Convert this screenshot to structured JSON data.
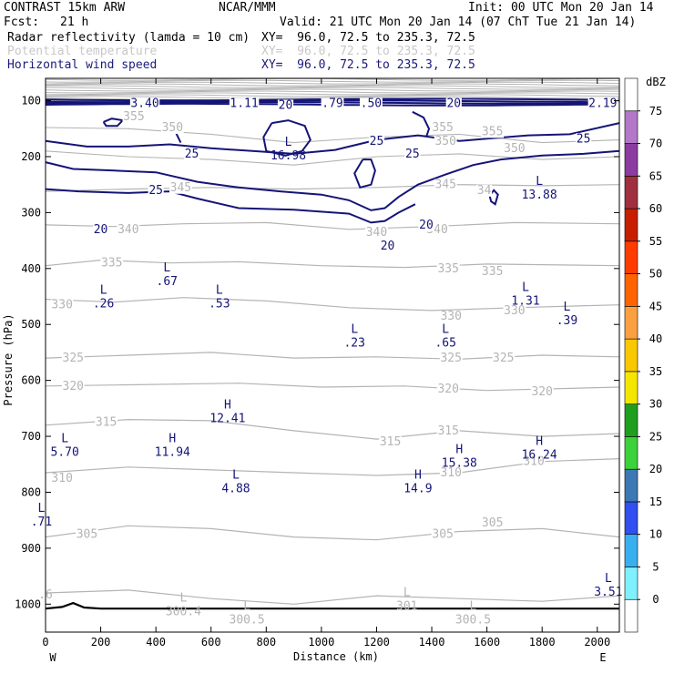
{
  "header": {
    "model": "CONTRAST 15km ARW",
    "center": "NCAR/MMM",
    "init": "Init: 00 UTC Mon 20 Jan 14",
    "fcst_label": "Fcst:",
    "fcst_value": "21 h",
    "valid": "Valid: 21 UTC Mon 20 Jan 14 (07 ChT Tue 21 Jan 14)",
    "fields": [
      {
        "name": "Radar reflectivity (lamda = 10 cm)",
        "xy": "XY=  96.0, 72.5 to 235.3, 72.5",
        "color": "#000000"
      },
      {
        "name": "Potential temperature",
        "xy": "XY=  96.0, 72.5 to 235.3, 72.5",
        "color": "#c8c8c8"
      },
      {
        "name": "Horizontal wind speed",
        "xy": "XY=  96.0, 72.5 to 235.3, 72.5",
        "color": "#1a1a7a"
      }
    ]
  },
  "chart_data": {
    "type": "contour",
    "xlabel": "Distance (km)",
    "ylabel": "Pressure (hPa)",
    "x_ticks": [
      0,
      200,
      400,
      600,
      800,
      1000,
      1200,
      1400,
      1600,
      1800,
      2000
    ],
    "y_ticks": [
      100,
      200,
      300,
      400,
      500,
      600,
      700,
      800,
      900,
      1000
    ],
    "xlim": [
      0,
      2080
    ],
    "ylim": [
      1050,
      60
    ],
    "left_endpoint": "W",
    "right_endpoint": "E",
    "theta_labels": [
      {
        "text": "355",
        "x": 320,
        "p": 128
      },
      {
        "text": "350",
        "x": 460,
        "p": 148
      },
      {
        "text": "355",
        "x": 1440,
        "p": 148
      },
      {
        "text": "355",
        "x": 1620,
        "p": 155
      },
      {
        "text": "350",
        "x": 1450,
        "p": 172
      },
      {
        "text": "350",
        "x": 1700,
        "p": 185
      },
      {
        "text": "345",
        "x": 490,
        "p": 255
      },
      {
        "text": "345",
        "x": 1450,
        "p": 250
      },
      {
        "text": "34",
        "x": 1590,
        "p": 260
      },
      {
        "text": "340",
        "x": 300,
        "p": 330
      },
      {
        "text": "340",
        "x": 1200,
        "p": 335
      },
      {
        "text": "340",
        "x": 1420,
        "p": 330
      },
      {
        "text": "335",
        "x": 240,
        "p": 390
      },
      {
        "text": "335",
        "x": 1460,
        "p": 400
      },
      {
        "text": "335",
        "x": 1620,
        "p": 405
      },
      {
        "text": "330",
        "x": 60,
        "p": 465
      },
      {
        "text": "330",
        "x": 1470,
        "p": 485
      },
      {
        "text": "330",
        "x": 1700,
        "p": 475
      },
      {
        "text": "325",
        "x": 100,
        "p": 560
      },
      {
        "text": "325",
        "x": 1470,
        "p": 560
      },
      {
        "text": "325",
        "x": 1660,
        "p": 560
      },
      {
        "text": "320",
        "x": 100,
        "p": 610
      },
      {
        "text": "320",
        "x": 1460,
        "p": 615
      },
      {
        "text": "320",
        "x": 1800,
        "p": 620
      },
      {
        "text": "315",
        "x": 220,
        "p": 675
      },
      {
        "text": "315",
        "x": 1250,
        "p": 710
      },
      {
        "text": "315",
        "x": 1460,
        "p": 690
      },
      {
        "text": "310",
        "x": 60,
        "p": 775
      },
      {
        "text": "310",
        "x": 1470,
        "p": 765
      },
      {
        "text": "310",
        "x": 1770,
        "p": 745
      },
      {
        "text": "305",
        "x": 150,
        "p": 875
      },
      {
        "text": "305",
        "x": 1440,
        "p": 875
      },
      {
        "text": "305",
        "x": 1620,
        "p": 855
      }
    ],
    "wind_labels": [
      {
        "text": "3.40",
        "x": 360,
        "p": 105
      },
      {
        "text": "1.11",
        "x": 720,
        "p": 105
      },
      {
        "text": "20",
        "x": 870,
        "p": 108
      },
      {
        "text": ".79",
        "x": 1040,
        "p": 105
      },
      {
        "text": ".50",
        "x": 1180,
        "p": 105
      },
      {
        "text": "20",
        "x": 1480,
        "p": 105
      },
      {
        "text": "2.19",
        "x": 2020,
        "p": 105
      },
      {
        "text": "25",
        "x": 1200,
        "p": 172
      },
      {
        "text": "25",
        "x": 530,
        "p": 195
      },
      {
        "text": "25",
        "x": 1330,
        "p": 195
      },
      {
        "text": "25",
        "x": 1950,
        "p": 168
      },
      {
        "text": "25",
        "x": 400,
        "p": 260
      },
      {
        "text": "20",
        "x": 200,
        "p": 330
      },
      {
        "text": "20",
        "x": 1380,
        "p": 322
      },
      {
        "text": "20",
        "x": 1240,
        "p": 360
      }
    ],
    "extrema": [
      {
        "kind": "L",
        "value": "16.98",
        "x": 880,
        "p": 195
      },
      {
        "kind": "L",
        "value": "13.88",
        "x": 1790,
        "p": 265
      },
      {
        "kind": "L",
        "value": ".67",
        "x": 440,
        "p": 420
      },
      {
        "kind": "L",
        "value": ".26",
        "x": 210,
        "p": 460
      },
      {
        "kind": "L",
        "value": ".53",
        "x": 630,
        "p": 460
      },
      {
        "kind": "L",
        "value": "1.31",
        "x": 1740,
        "p": 455
      },
      {
        "kind": "L",
        "value": ".39",
        "x": 1890,
        "p": 490
      },
      {
        "kind": "L",
        "value": ".23",
        "x": 1120,
        "p": 530
      },
      {
        "kind": "L",
        "value": ".65",
        "x": 1450,
        "p": 530
      },
      {
        "kind": "H",
        "value": "12.41",
        "x": 660,
        "p": 665
      },
      {
        "kind": "H",
        "value": "15.38",
        "x": 1500,
        "p": 745
      },
      {
        "kind": "L",
        "value": "5.70",
        "x": 70,
        "p": 725
      },
      {
        "kind": "H",
        "value": "11.94",
        "x": 460,
        "p": 725
      },
      {
        "kind": "H",
        "value": "16.24",
        "x": 1790,
        "p": 730
      },
      {
        "kind": "L",
        "value": "4.88",
        "x": 690,
        "p": 790
      },
      {
        "kind": "H",
        "value": "14.9",
        "x": 1350,
        "p": 790
      },
      {
        "kind": "L",
        "value": ".71",
        "x": -15,
        "p": 850
      },
      {
        "kind": "L",
        "value": "3.51",
        "x": 2040,
        "p": 975
      }
    ],
    "surface_theta_labels": [
      {
        "text": ".6",
        "x": 0,
        "p": 980
      },
      {
        "kind": "L",
        "text": "300.4",
        "x": 500,
        "p": 1010
      },
      {
        "kind": "L",
        "text": "300.5",
        "x": 730,
        "p": 1025
      },
      {
        "kind": "L",
        "text": "301",
        "x": 1310,
        "p": 1000
      },
      {
        "kind": "L",
        "text": "300.5",
        "x": 1550,
        "p": 1025
      }
    ],
    "colorbar": {
      "units": "dBZ",
      "levels": [
        0,
        5,
        10,
        15,
        20,
        25,
        30,
        35,
        40,
        45,
        50,
        55,
        60,
        65,
        70,
        75
      ],
      "colors": [
        "#ffffff",
        "#7ff0ff",
        "#38b0f0",
        "#3250f0",
        "#3c78b4",
        "#3cd23c",
        "#1ea01e",
        "#f5e600",
        "#fac800",
        "#faa040",
        "#ff6400",
        "#ff3c00",
        "#c81e00",
        "#a03040",
        "#8c3ca0",
        "#b478c8",
        "#ffffff"
      ]
    },
    "colors": {
      "theta": "#b4b4b4",
      "wind": "#141478",
      "terrain": "#000000"
    }
  }
}
